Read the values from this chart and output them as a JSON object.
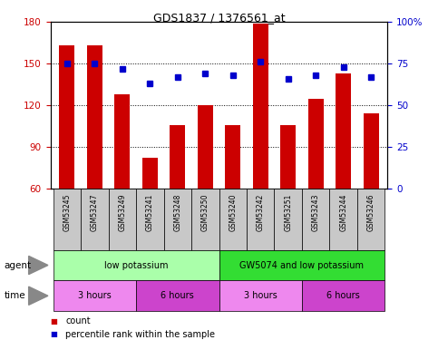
{
  "title": "GDS1837 / 1376561_at",
  "samples": [
    "GSM53245",
    "GSM53247",
    "GSM53249",
    "GSM53241",
    "GSM53248",
    "GSM53250",
    "GSM53240",
    "GSM53242",
    "GSM53251",
    "GSM53243",
    "GSM53244",
    "GSM53246"
  ],
  "counts": [
    163,
    163,
    128,
    82,
    106,
    120,
    106,
    179,
    106,
    125,
    143,
    114
  ],
  "percentiles": [
    75,
    75,
    72,
    63,
    67,
    69,
    68,
    76,
    66,
    68,
    73,
    67
  ],
  "ylim_left": [
    60,
    180
  ],
  "ylim_right": [
    0,
    100
  ],
  "yticks_left": [
    60,
    90,
    120,
    150,
    180
  ],
  "yticks_right": [
    0,
    25,
    50,
    75,
    100
  ],
  "bar_color": "#cc0000",
  "dot_color": "#0000cc",
  "agent_groups": [
    {
      "label": "low potassium",
      "start": 0,
      "end": 6,
      "color": "#aaffaa"
    },
    {
      "label": "GW5074 and low potassium",
      "start": 6,
      "end": 12,
      "color": "#33dd33"
    }
  ],
  "time_groups": [
    {
      "label": "3 hours",
      "start": 0,
      "end": 3,
      "color": "#ee88ee"
    },
    {
      "label": "6 hours",
      "start": 3,
      "end": 6,
      "color": "#cc44cc"
    },
    {
      "label": "3 hours",
      "start": 6,
      "end": 9,
      "color": "#ee88ee"
    },
    {
      "label": "6 hours",
      "start": 9,
      "end": 12,
      "color": "#cc44cc"
    }
  ],
  "legend_items": [
    {
      "label": "count",
      "color": "#cc0000"
    },
    {
      "label": "percentile rank within the sample",
      "color": "#0000cc"
    }
  ],
  "tick_label_color": "#cc0000",
  "right_tick_color": "#0000cc",
  "sample_box_color": "#c8c8c8",
  "bar_width": 0.55
}
